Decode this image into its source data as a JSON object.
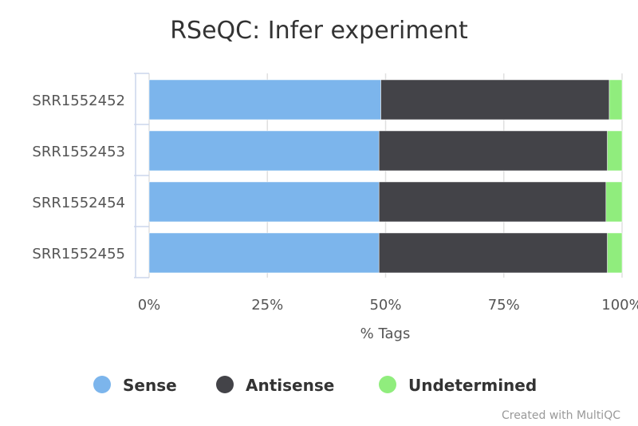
{
  "chart_data": {
    "type": "bar",
    "orientation": "horizontal",
    "stacked": "percent",
    "title": "RSeQC: Infer experiment",
    "xlabel": "% Tags",
    "ylabel": "",
    "xlim": [
      0,
      100
    ],
    "xticks": [
      "0%",
      "25%",
      "50%",
      "75%",
      "100%"
    ],
    "categories": [
      "SRR1552452",
      "SRR1552453",
      "SRR1552454",
      "SRR1552455"
    ],
    "series": [
      {
        "name": "Sense",
        "color": "#7cb5ec",
        "values": [
          49.0,
          48.6,
          48.6,
          48.6
        ]
      },
      {
        "name": "Antisense",
        "color": "#434348",
        "values": [
          48.3,
          48.3,
          48.0,
          48.3
        ]
      },
      {
        "name": "Undetermined",
        "color": "#90ed7d",
        "values": [
          2.7,
          3.1,
          3.4,
          3.1
        ]
      }
    ],
    "legend": "bottom-center",
    "grid": true
  },
  "credit": "Created with MultiQC"
}
